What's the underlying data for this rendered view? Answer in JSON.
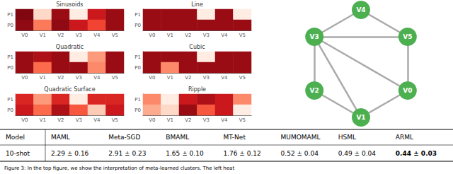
{
  "chart_data": [
    {
      "type": "heatmap",
      "title": "Sinusoids",
      "categories": [
        "V0",
        "V1",
        "V2",
        "V3",
        "V4",
        "V5"
      ],
      "rows": [
        "P1",
        "P0"
      ],
      "values": [
        [
          0.95,
          0.15,
          0.9,
          0.05,
          0.75,
          0.9
        ],
        [
          0.92,
          0.45,
          0.92,
          0.75,
          0.6,
          0.9
        ]
      ],
      "color": "Reds",
      "color_range": [
        0,
        1
      ]
    },
    {
      "type": "heatmap",
      "title": "Line",
      "categories": [
        "V0",
        "V1",
        "V2",
        "V3",
        "V4",
        "V5"
      ],
      "rows": [
        "P1",
        "P0"
      ],
      "values": [
        [
          0.9,
          0.9,
          0.9,
          0.05,
          0.9,
          0.05
        ],
        [
          0.9,
          0.9,
          0.9,
          0.9,
          0.9,
          0.9
        ]
      ],
      "color": "Reds",
      "color_range": [
        0,
        1
      ]
    },
    {
      "type": "heatmap",
      "title": "Quadratic",
      "categories": [
        "V0",
        "V1",
        "V2",
        "V3",
        "V4",
        "V5"
      ],
      "rows": [
        "P1",
        "P0"
      ],
      "values": [
        [
          0.9,
          0.85,
          0.9,
          0.05,
          0.35,
          0.9
        ],
        [
          0.9,
          0.5,
          0.9,
          0.9,
          0.4,
          0.9
        ]
      ],
      "color": "Reds",
      "color_range": [
        0,
        1
      ]
    },
    {
      "type": "heatmap",
      "title": "Cubic",
      "categories": [
        "V0",
        "V1",
        "V2",
        "V3",
        "V4",
        "V5"
      ],
      "rows": [
        "P1",
        "P0"
      ],
      "values": [
        [
          0.9,
          0.9,
          0.9,
          0.05,
          0.9,
          0.9
        ],
        [
          0.9,
          0.4,
          0.9,
          0.9,
          0.9,
          0.9
        ]
      ],
      "color": "Reds",
      "color_range": [
        0,
        1
      ]
    },
    {
      "type": "heatmap",
      "title": "Quadratic Surface",
      "categories": [
        "V0",
        "V1",
        "V2",
        "V3",
        "V4",
        "V5"
      ],
      "rows": [
        "P1",
        "P0"
      ],
      "values": [
        [
          0.7,
          0.35,
          0.7,
          0.05,
          0.7,
          0.7
        ],
        [
          0.75,
          0.5,
          0.85,
          0.55,
          0.2,
          0.75
        ]
      ],
      "color": "Reds",
      "color_range": [
        0,
        1
      ]
    },
    {
      "type": "heatmap",
      "title": "Ripple",
      "categories": [
        "V0",
        "V1",
        "V2",
        "V3",
        "V4",
        "V5"
      ],
      "rows": [
        "P1",
        "P0"
      ],
      "values": [
        [
          0.4,
          0.05,
          0.75,
          0.85,
          0.75,
          0.4
        ],
        [
          0.3,
          0.15,
          0.9,
          0.55,
          0.75,
          0.05
        ]
      ],
      "color": "Reds",
      "color_range": [
        0,
        1
      ]
    },
    {
      "type": "graph",
      "nodes": [
        "V0",
        "V1",
        "V2",
        "V3",
        "V4",
        "V5"
      ],
      "edges": [
        [
          "V0",
          "V1"
        ],
        [
          "V0",
          "V3"
        ],
        [
          "V0",
          "V5"
        ],
        [
          "V1",
          "V2"
        ],
        [
          "V1",
          "V3"
        ],
        [
          "V2",
          "V3"
        ],
        [
          "V3",
          "V4"
        ],
        [
          "V3",
          "V5"
        ],
        [
          "V4",
          "V5"
        ]
      ],
      "color": "#4caf50",
      "edge_color": "#aaaaaa"
    },
    {
      "type": "table",
      "columns": [
        "Model",
        "MAML",
        "Meta-SGD",
        "BMAML",
        "MT-Net",
        "MUMOMAML",
        "HSML",
        "ARML"
      ],
      "rows": [
        {
          "label": "10-shot",
          "values": [
            "2.29 ± 0.16",
            "2.91 ± 0.23",
            "1.65 ± 0.10",
            "1.76 ± 0.12",
            "0.52 ± 0.04",
            "0.49 ± 0.04",
            "0.44 ± 0.03"
          ]
        }
      ]
    },
    {
      "type": "caption",
      "title": "Figure 3: In the top figure, we show the interpretation of meta-learned clusters. The left heat"
    }
  ]
}
